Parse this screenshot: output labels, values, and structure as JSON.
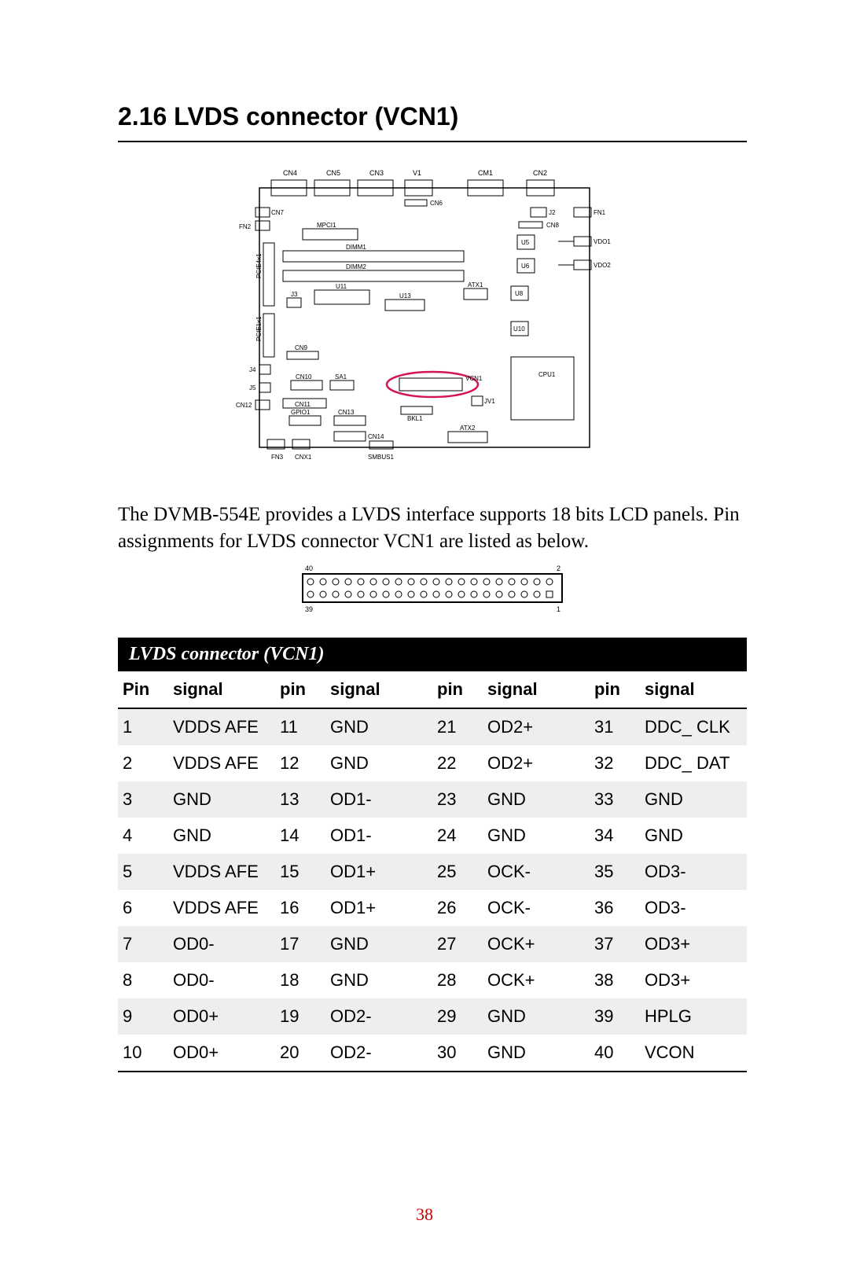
{
  "heading": "2.16  LVDS connector (VCN1)",
  "paragraph": "The DVMB-554E provides a LVDS interface supports 18 bits LCD panels. Pin assignments for LVDS connector VCN1 are listed as below.",
  "connector_labels": {
    "tl": "40",
    "tr": "2",
    "bl": "39",
    "br": "1"
  },
  "board_labels": {
    "cn4": "CN4",
    "cn5": "CN5",
    "cn3": "CN3",
    "v1": "V1",
    "cm1": "CM1",
    "cn2": "CN2",
    "cn6": "CN6",
    "cn7": "CN7",
    "fn2": "FN2",
    "j2": "J2",
    "fn1": "FN1",
    "cn8": "CN8",
    "mpci1": "MPCI1",
    "u5": "U5",
    "vdo1": "VDO1",
    "dimm1": "DIMM1",
    "u6": "U6",
    "vdo2": "VDO2",
    "dimm2": "DIMM2",
    "pcie4": "PCIE4x1",
    "u11": "U11",
    "atx1": "ATX1",
    "u8": "U8",
    "j3": "J3",
    "u13": "U13",
    "pcie1": "PCIE1x1",
    "u10": "U10",
    "cn9": "CN9",
    "j4": "J4",
    "cn10": "CN10",
    "sa1": "SA1",
    "vcn1": "VCN1",
    "cpu1": "CPU1",
    "j5": "J5",
    "cn11": "CN11",
    "jv1": "JV1",
    "cn12": "CN12",
    "gpio1": "GPIO1",
    "cn13": "CN13",
    "bkl1": "BKL1",
    "cn14": "CN14",
    "atx2": "ATX2",
    "fn3": "FN3",
    "cnx1": "CNX1",
    "smbus1": "SMBUS1"
  },
  "table": {
    "title": "LVDS connector (VCN1)",
    "headers": [
      "Pin",
      "signal",
      "pin",
      "signal",
      "pin",
      "signal",
      "pin",
      "signal"
    ],
    "col_widths_pct": [
      8,
      17,
      8,
      17,
      8,
      17,
      8,
      17
    ],
    "rows": [
      {
        "cells": [
          "1",
          "VDDS AFE",
          "11",
          "GND",
          "21",
          "OD2+",
          "31",
          "DDC_ CLK"
        ],
        "striped": true
      },
      {
        "cells": [
          "2",
          "VDDS AFE",
          "12",
          "GND",
          "22",
          "OD2+",
          "32",
          "DDC_ DAT"
        ],
        "striped": false
      },
      {
        "cells": [
          "3",
          "GND",
          "13",
          "OD1-",
          "23",
          "GND",
          "33",
          "GND"
        ],
        "striped": true
      },
      {
        "cells": [
          "4",
          "GND",
          "14",
          "OD1-",
          "24",
          "GND",
          "34",
          "GND"
        ],
        "striped": false
      },
      {
        "cells": [
          "5",
          "VDDS AFE",
          "15",
          "OD1+",
          "25",
          "OCK-",
          "35",
          "OD3-"
        ],
        "striped": true
      },
      {
        "cells": [
          "6",
          "VDDS AFE",
          "16",
          "OD1+",
          "26",
          "OCK-",
          "36",
          "OD3-"
        ],
        "striped": false
      },
      {
        "cells": [
          "7",
          "OD0-",
          "17",
          "GND",
          "27",
          "OCK+",
          "37",
          "OD3+"
        ],
        "striped": true
      },
      {
        "cells": [
          "8",
          "OD0-",
          "18",
          "GND",
          "28",
          "OCK+",
          "38",
          "OD3+"
        ],
        "striped": false
      },
      {
        "cells": [
          "9",
          "OD0+",
          "19",
          "OD2-",
          "29",
          "GND",
          "39",
          "HPLG"
        ],
        "striped": true
      },
      {
        "cells": [
          "10",
          "OD0+",
          "20",
          "OD2-",
          "30",
          "GND",
          "40",
          "VCON"
        ],
        "striped": false
      }
    ]
  },
  "page_number": "38",
  "style": {
    "highlight_color": "#d4145a",
    "stripe_color": "#eeeeee",
    "table_title_bg": "#000000",
    "table_title_fg": "#ffffff",
    "page_number_color": "#cc0000"
  }
}
